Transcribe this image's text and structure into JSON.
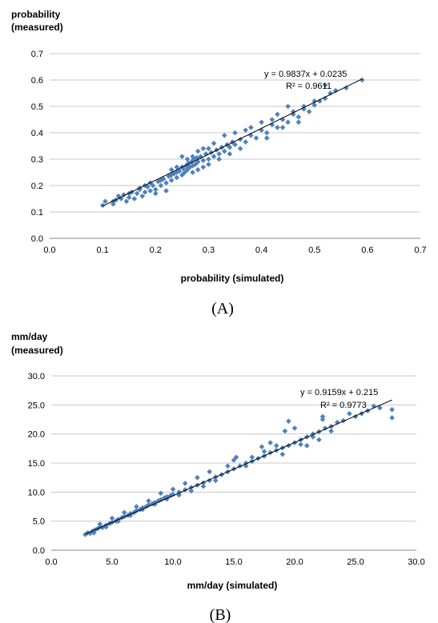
{
  "chart_data": [
    {
      "type": "scatter",
      "panel_label": "(A)",
      "ylabel_line1": "probability",
      "ylabel_line2": "(measured)",
      "xlabel": "probability  (simulated)",
      "xlim": [
        0,
        0.7
      ],
      "ylim": [
        0,
        0.7
      ],
      "xticks": [
        "0.0",
        "0.1",
        "0.2",
        "0.3",
        "0.4",
        "0.5",
        "0.6",
        "0.7"
      ],
      "yticks": [
        "0.0",
        "0.1",
        "0.2",
        "0.3",
        "0.4",
        "0.5",
        "0.6",
        "0.7"
      ],
      "grid": "horizontal",
      "marker_color": "#4f81bd",
      "trendline": {
        "slope": 0.9837,
        "intercept": 0.0235,
        "x_from": 0.1,
        "x_to": 0.59
      },
      "equation": "y = 0.9837x + 0.0235",
      "r_squared": "R² = 0.9611",
      "points": [
        [
          0.1,
          0.125
        ],
        [
          0.105,
          0.14
        ],
        [
          0.12,
          0.13
        ],
        [
          0.125,
          0.145
        ],
        [
          0.135,
          0.15
        ],
        [
          0.14,
          0.165
        ],
        [
          0.145,
          0.14
        ],
        [
          0.15,
          0.155
        ],
        [
          0.155,
          0.175
        ],
        [
          0.16,
          0.15
        ],
        [
          0.165,
          0.17
        ],
        [
          0.17,
          0.185
        ],
        [
          0.175,
          0.16
        ],
        [
          0.18,
          0.175
        ],
        [
          0.185,
          0.195
        ],
        [
          0.19,
          0.18
        ],
        [
          0.195,
          0.2
        ],
        [
          0.2,
          0.185
        ],
        [
          0.205,
          0.215
        ],
        [
          0.21,
          0.2
        ],
        [
          0.215,
          0.225
        ],
        [
          0.22,
          0.21
        ],
        [
          0.225,
          0.235
        ],
        [
          0.23,
          0.22
        ],
        [
          0.235,
          0.245
        ],
        [
          0.24,
          0.23
        ],
        [
          0.245,
          0.255
        ],
        [
          0.25,
          0.24
        ],
        [
          0.252,
          0.265
        ],
        [
          0.255,
          0.25
        ],
        [
          0.258,
          0.275
        ],
        [
          0.26,
          0.26
        ],
        [
          0.262,
          0.285
        ],
        [
          0.265,
          0.27
        ],
        [
          0.268,
          0.29
        ],
        [
          0.27,
          0.275
        ],
        [
          0.272,
          0.3
        ],
        [
          0.275,
          0.28
        ],
        [
          0.278,
          0.305
        ],
        [
          0.28,
          0.29
        ],
        [
          0.285,
          0.31
        ],
        [
          0.29,
          0.295
        ],
        [
          0.295,
          0.32
        ],
        [
          0.3,
          0.3
        ],
        [
          0.305,
          0.325
        ],
        [
          0.31,
          0.31
        ],
        [
          0.315,
          0.335
        ],
        [
          0.32,
          0.32
        ],
        [
          0.325,
          0.345
        ],
        [
          0.33,
          0.33
        ],
        [
          0.335,
          0.355
        ],
        [
          0.34,
          0.345
        ],
        [
          0.345,
          0.365
        ],
        [
          0.35,
          0.355
        ],
        [
          0.36,
          0.375
        ],
        [
          0.37,
          0.365
        ],
        [
          0.38,
          0.39
        ],
        [
          0.39,
          0.38
        ],
        [
          0.4,
          0.41
        ],
        [
          0.41,
          0.4
        ],
        [
          0.42,
          0.43
        ],
        [
          0.43,
          0.42
        ],
        [
          0.44,
          0.45
        ],
        [
          0.45,
          0.44
        ],
        [
          0.46,
          0.47
        ],
        [
          0.47,
          0.46
        ],
        [
          0.48,
          0.49
        ],
        [
          0.49,
          0.48
        ],
        [
          0.5,
          0.505
        ],
        [
          0.51,
          0.52
        ],
        [
          0.52,
          0.53
        ],
        [
          0.53,
          0.55
        ],
        [
          0.54,
          0.56
        ],
        [
          0.56,
          0.57
        ],
        [
          0.59,
          0.6
        ],
        [
          0.27,
          0.25
        ],
        [
          0.28,
          0.26
        ],
        [
          0.29,
          0.27
        ],
        [
          0.26,
          0.3
        ],
        [
          0.25,
          0.31
        ],
        [
          0.3,
          0.34
        ],
        [
          0.31,
          0.36
        ],
        [
          0.33,
          0.39
        ],
        [
          0.35,
          0.4
        ],
        [
          0.37,
          0.41
        ],
        [
          0.4,
          0.44
        ],
        [
          0.43,
          0.47
        ],
        [
          0.45,
          0.5
        ],
        [
          0.48,
          0.5
        ],
        [
          0.5,
          0.52
        ],
        [
          0.52,
          0.58
        ],
        [
          0.22,
          0.18
        ],
        [
          0.2,
          0.17
        ],
        [
          0.18,
          0.2
        ],
        [
          0.23,
          0.26
        ],
        [
          0.24,
          0.27
        ],
        [
          0.32,
          0.3
        ],
        [
          0.34,
          0.32
        ],
        [
          0.36,
          0.34
        ],
        [
          0.41,
          0.38
        ],
        [
          0.44,
          0.42
        ],
        [
          0.47,
          0.44
        ],
        [
          0.38,
          0.42
        ],
        [
          0.42,
          0.45
        ],
        [
          0.46,
          0.48
        ],
        [
          0.28,
          0.33
        ],
        [
          0.29,
          0.34
        ],
        [
          0.3,
          0.28
        ],
        [
          0.27,
          0.31
        ],
        [
          0.26,
          0.28
        ],
        [
          0.25,
          0.27
        ],
        [
          0.24,
          0.25
        ],
        [
          0.23,
          0.24
        ],
        [
          0.21,
          0.22
        ],
        [
          0.19,
          0.21
        ],
        [
          0.17,
          0.19
        ],
        [
          0.15,
          0.17
        ],
        [
          0.13,
          0.16
        ],
        [
          0.12,
          0.14
        ]
      ]
    },
    {
      "type": "scatter",
      "panel_label": "(B)",
      "ylabel_line1": "mm/day",
      "ylabel_line2": "(measured)",
      "xlabel": "mm/day (simulated)",
      "xlim": [
        0,
        30
      ],
      "ylim": [
        0,
        30
      ],
      "xticks": [
        "0.0",
        "5.0",
        "10.0",
        "15.0",
        "20.0",
        "25.0",
        "30.0"
      ],
      "yticks": [
        "0.0",
        "5.0",
        "10.0",
        "15.0",
        "20.0",
        "25.0",
        "30.0"
      ],
      "grid": "horizontal",
      "marker_color": "#4f81bd",
      "trendline": {
        "slope": 0.9159,
        "intercept": 0.215,
        "x_from": 2.8,
        "x_to": 28.0
      },
      "equation": "y = 0.9159x + 0.215",
      "r_squared": "R² = 0.9773",
      "points": [
        [
          2.8,
          2.7
        ],
        [
          3.0,
          3.0
        ],
        [
          3.2,
          2.9
        ],
        [
          3.4,
          3.3
        ],
        [
          3.6,
          3.5
        ],
        [
          3.8,
          3.7
        ],
        [
          4.0,
          4.0
        ],
        [
          4.2,
          3.9
        ],
        [
          4.5,
          4.3
        ],
        [
          4.8,
          4.6
        ],
        [
          5.0,
          4.8
        ],
        [
          5.3,
          5.0
        ],
        [
          5.5,
          5.3
        ],
        [
          5.8,
          5.6
        ],
        [
          6.0,
          5.8
        ],
        [
          6.3,
          6.0
        ],
        [
          6.5,
          6.3
        ],
        [
          6.8,
          6.5
        ],
        [
          7.0,
          6.8
        ],
        [
          7.3,
          7.0
        ],
        [
          7.5,
          7.3
        ],
        [
          7.8,
          7.5
        ],
        [
          8.0,
          7.8
        ],
        [
          8.3,
          8.0
        ],
        [
          8.5,
          8.2
        ],
        [
          8.8,
          8.5
        ],
        [
          9.0,
          8.7
        ],
        [
          9.3,
          9.0
        ],
        [
          9.5,
          9.2
        ],
        [
          9.8,
          9.4
        ],
        [
          10.0,
          9.6
        ],
        [
          10.5,
          10.0
        ],
        [
          11.0,
          10.4
        ],
        [
          11.5,
          10.8
        ],
        [
          12.0,
          11.2
        ],
        [
          12.5,
          11.6
        ],
        [
          13.0,
          12.0
        ],
        [
          13.5,
          12.6
        ],
        [
          14.0,
          13.0
        ],
        [
          14.5,
          13.5
        ],
        [
          15.0,
          14.0
        ],
        [
          15.5,
          14.5
        ],
        [
          16.0,
          15.0
        ],
        [
          16.5,
          15.3
        ],
        [
          17.0,
          15.8
        ],
        [
          17.5,
          16.2
        ],
        [
          18.0,
          16.8
        ],
        [
          18.5,
          17.2
        ],
        [
          19.0,
          17.6
        ],
        [
          19.5,
          18.0
        ],
        [
          20.0,
          18.5
        ],
        [
          20.5,
          19.0
        ],
        [
          21.0,
          19.5
        ],
        [
          21.5,
          20.0
        ],
        [
          22.0,
          20.4
        ],
        [
          22.5,
          21.0
        ],
        [
          23.0,
          21.3
        ],
        [
          23.5,
          22.0
        ],
        [
          24.0,
          22.3
        ],
        [
          25.0,
          23.0
        ],
        [
          26.0,
          24.0
        ],
        [
          26.5,
          24.8
        ],
        [
          28.0,
          24.2
        ],
        [
          28.0,
          22.8
        ],
        [
          15.0,
          15.5
        ],
        [
          15.2,
          16.0
        ],
        [
          17.3,
          17.8
        ],
        [
          18.0,
          18.5
        ],
        [
          19.2,
          20.5
        ],
        [
          19.5,
          22.2
        ],
        [
          20.0,
          21.0
        ],
        [
          22.3,
          23.0
        ],
        [
          22.3,
          22.5
        ],
        [
          23.0,
          20.5
        ],
        [
          21.0,
          18.0
        ],
        [
          19.0,
          16.5
        ],
        [
          16.0,
          14.5
        ],
        [
          13.0,
          13.5
        ],
        [
          12.0,
          12.5
        ],
        [
          11.0,
          11.5
        ],
        [
          10.0,
          10.5
        ],
        [
          9.0,
          9.8
        ],
        [
          8.0,
          8.5
        ],
        [
          7.0,
          7.5
        ],
        [
          6.0,
          6.5
        ],
        [
          5.0,
          5.5
        ],
        [
          4.0,
          4.5
        ],
        [
          3.5,
          3.0
        ],
        [
          4.5,
          4.0
        ],
        [
          5.5,
          5.0
        ],
        [
          6.5,
          6.0
        ],
        [
          7.5,
          7.0
        ],
        [
          8.5,
          7.9
        ],
        [
          9.5,
          8.8
        ],
        [
          10.5,
          9.5
        ],
        [
          11.5,
          10.2
        ],
        [
          12.5,
          11.0
        ],
        [
          13.5,
          12.0
        ],
        [
          14.5,
          14.5
        ],
        [
          16.5,
          16.0
        ],
        [
          17.5,
          17.0
        ],
        [
          18.5,
          18.0
        ],
        [
          20.5,
          18.2
        ],
        [
          21.5,
          19.5
        ],
        [
          22.0,
          19.0
        ],
        [
          24.5,
          23.5
        ],
        [
          25.5,
          23.5
        ],
        [
          27.0,
          24.5
        ]
      ]
    }
  ]
}
